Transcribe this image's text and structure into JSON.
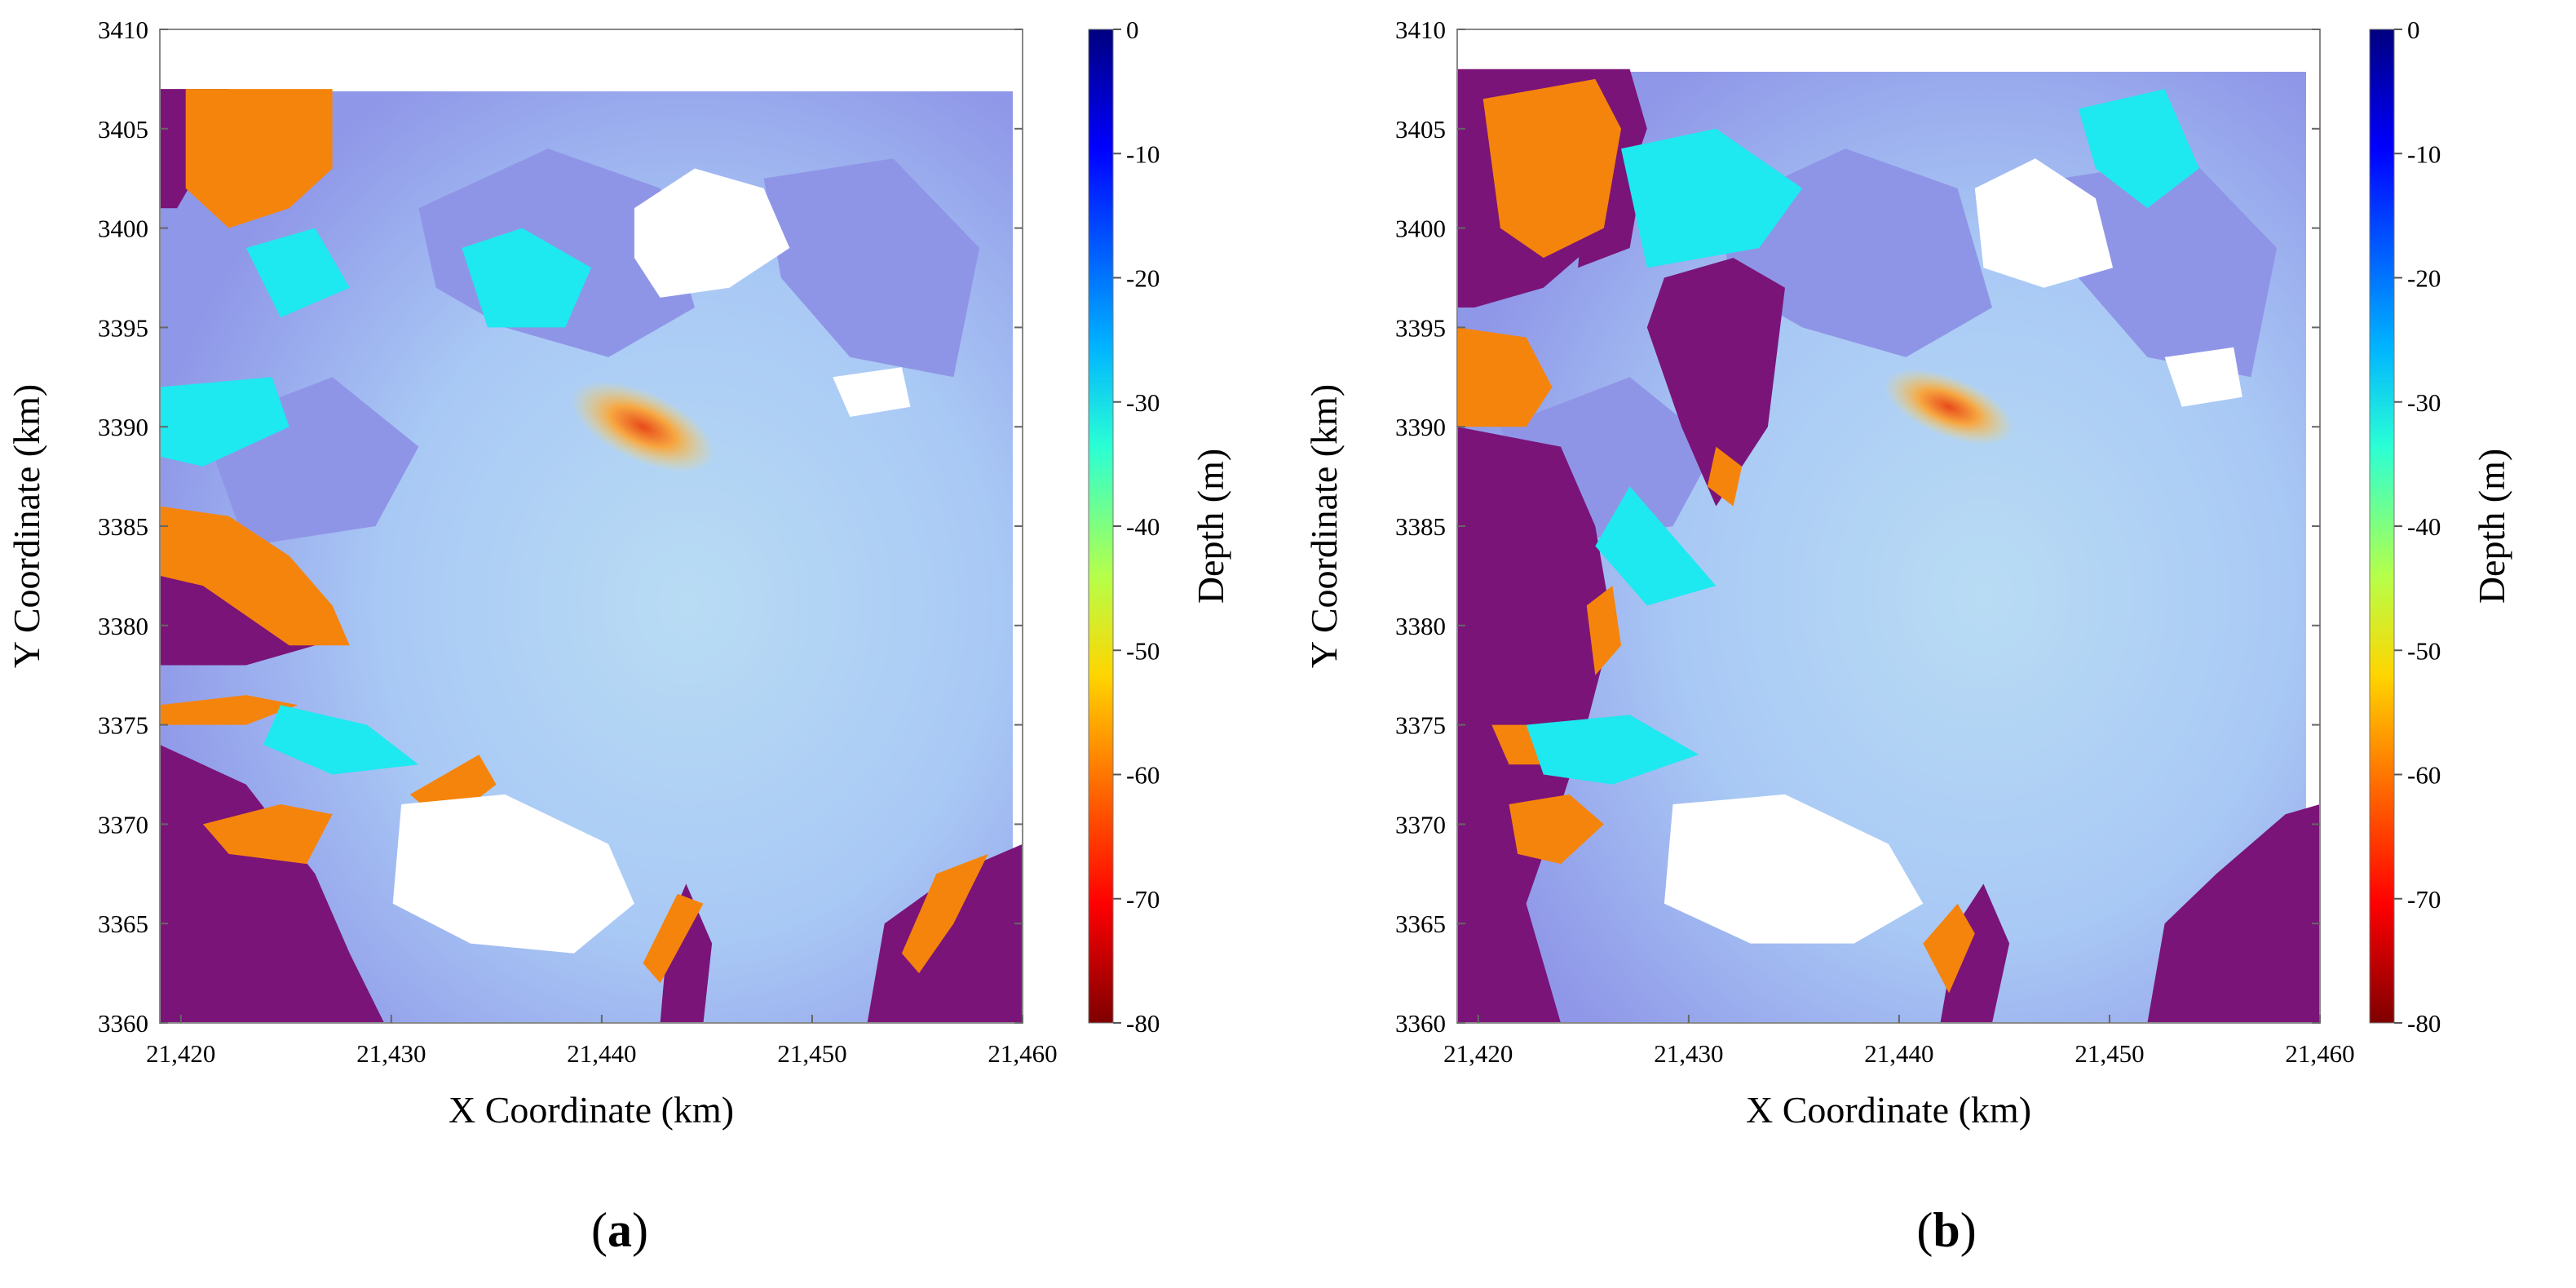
{
  "chart_data": [
    {
      "type": "heatmap",
      "panel_label": "(a)",
      "xlabel": "X Coordinate (km)",
      "ylabel": "Y Coordinate (km)",
      "colorbar_label": "Depth (m)",
      "xlim": [
        21.419,
        21.46
      ],
      "ylim": [
        3360,
        3410
      ],
      "x_ticks": [
        "21,420",
        "21,430",
        "21,440",
        "21,450",
        "21,460"
      ],
      "x_tick_values": [
        21.42,
        21.43,
        21.44,
        21.45,
        21.46
      ],
      "y_ticks": [
        "3360",
        "3365",
        "3370",
        "3375",
        "3380",
        "3385",
        "3390",
        "3395",
        "3400",
        "3405",
        "3410"
      ],
      "y_tick_values": [
        3360,
        3365,
        3370,
        3375,
        3380,
        3385,
        3390,
        3395,
        3400,
        3405,
        3410
      ],
      "colorbar_ticks": [
        "0",
        "-10",
        "-20",
        "-30",
        "-40",
        "-50",
        "-60",
        "-70",
        "-80"
      ],
      "colorbar_tick_values": [
        0,
        -10,
        -20,
        -30,
        -40,
        -50,
        -60,
        -70,
        -80
      ],
      "colorbar_range": [
        -80,
        0
      ]
    },
    {
      "type": "heatmap",
      "panel_label": "(b)",
      "xlabel": "X Coordinate (km)",
      "ylabel": "Y Coordinate (km)",
      "colorbar_label": "Depth (m)",
      "xlim": [
        21.419,
        21.46
      ],
      "ylim": [
        3360,
        3410
      ],
      "x_ticks": [
        "21,420",
        "21,430",
        "21,440",
        "21,450",
        "21,460"
      ],
      "x_tick_values": [
        21.42,
        21.43,
        21.44,
        21.45,
        21.46
      ],
      "y_ticks": [
        "3360",
        "3365",
        "3370",
        "3375",
        "3380",
        "3385",
        "3390",
        "3395",
        "3400",
        "3405",
        "3410"
      ],
      "y_tick_values": [
        3360,
        3365,
        3370,
        3375,
        3380,
        3385,
        3390,
        3395,
        3400,
        3405,
        3410
      ],
      "colorbar_ticks": [
        "0",
        "-10",
        "-20",
        "-30",
        "-40",
        "-50",
        "-60",
        "-70",
        "-80"
      ],
      "colorbar_tick_values": [
        0,
        -10,
        -20,
        -30,
        -40,
        -50,
        -60,
        -70,
        -80
      ],
      "colorbar_range": [
        -80,
        0
      ]
    }
  ],
  "colors": {
    "land": "#7a1478",
    "shallow_orange": "#f5840c",
    "cyan": "#1ee8f0",
    "sea_light": "#a9ccf6",
    "sea_violet": "#8f95e6",
    "no_data": "#ffffff"
  }
}
